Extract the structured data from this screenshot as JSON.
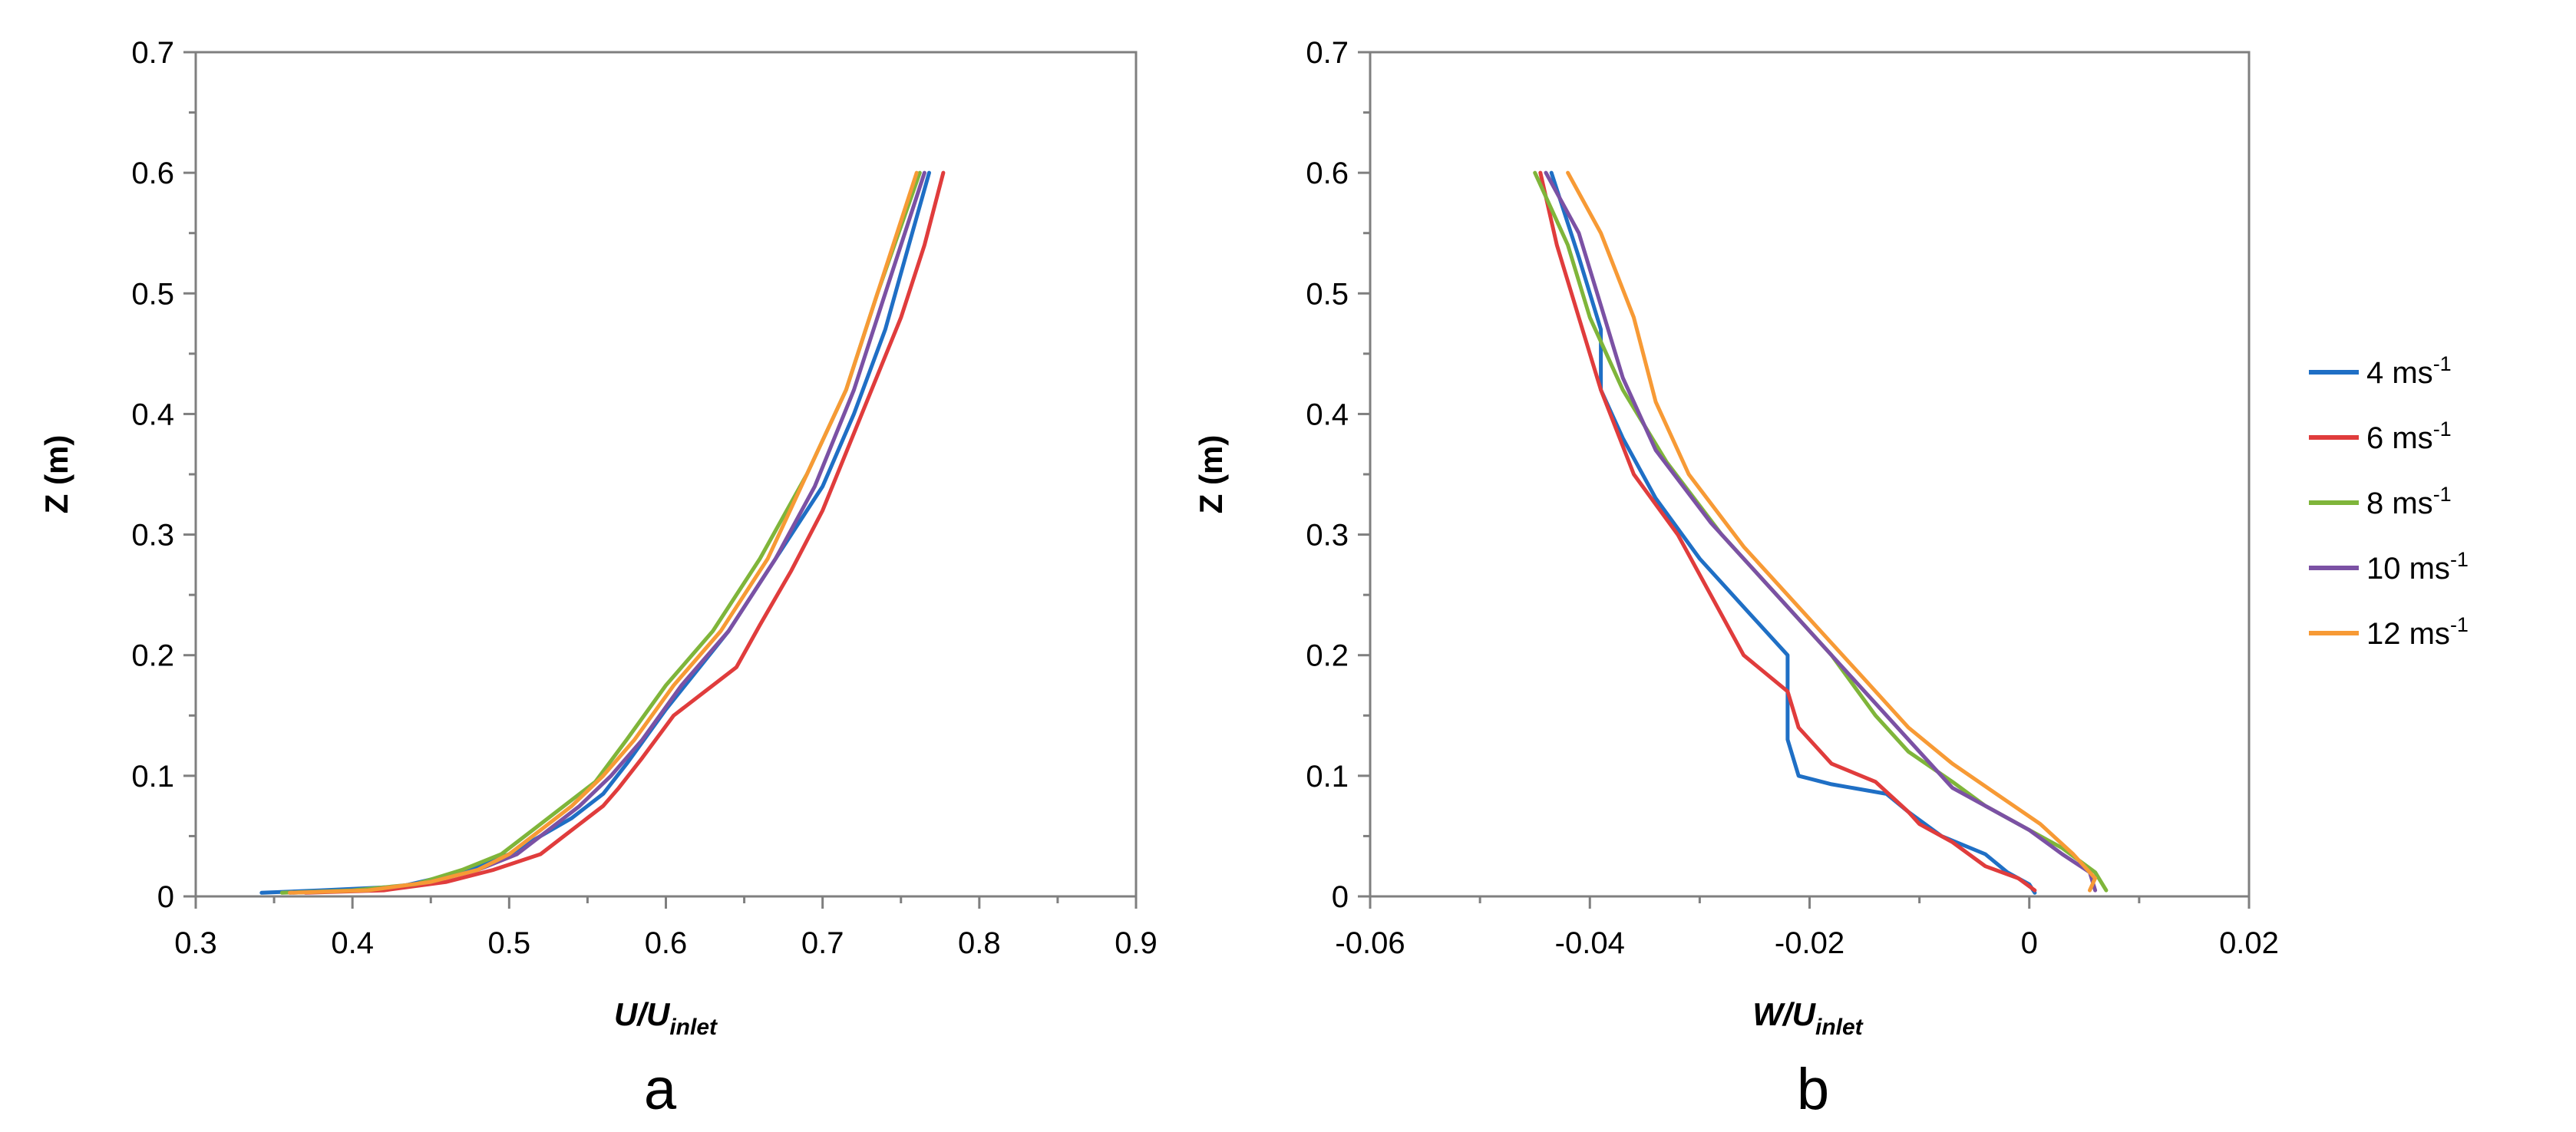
{
  "colors": {
    "4": "#1f6fc5",
    "6": "#e03c3c",
    "8": "#7fb53a",
    "10": "#7b51a4",
    "12": "#f79a35"
  },
  "legend": [
    {
      "key": "4",
      "base": "4 ms",
      "sup": "-1"
    },
    {
      "key": "6",
      "base": "6 ms",
      "sup": "-1"
    },
    {
      "key": "8",
      "base": "8 ms",
      "sup": "-1"
    },
    {
      "key": "10",
      "base": "10 ms",
      "sup": "-1"
    },
    {
      "key": "12",
      "base": "12 ms",
      "sup": "-1"
    }
  ],
  "chart_data": [
    {
      "type": "line",
      "panel_label": "a",
      "xlabel_main": "U/U",
      "xlabel_sub": "inlet",
      "ylabel": "Z (m)",
      "xlim": [
        0.3,
        0.9
      ],
      "ylim": [
        0,
        0.7
      ],
      "xticks": [
        "0.3",
        "0.4",
        "0.5",
        "0.6",
        "0.7",
        "0.8",
        "0.9"
      ],
      "yticks": [
        "0",
        "0.1",
        "0.2",
        "0.3",
        "0.4",
        "0.5",
        "0.6",
        "0.7"
      ],
      "series": [
        {
          "name": "4 ms-1",
          "key": "4",
          "points": [
            [
              0.342,
              0.003
            ],
            [
              0.38,
              0.005
            ],
            [
              0.43,
              0.008
            ],
            [
              0.47,
              0.02
            ],
            [
              0.5,
              0.035
            ],
            [
              0.52,
              0.05
            ],
            [
              0.54,
              0.065
            ],
            [
              0.56,
              0.085
            ],
            [
              0.575,
              0.11
            ],
            [
              0.6,
              0.155
            ],
            [
              0.64,
              0.22
            ],
            [
              0.67,
              0.28
            ],
            [
              0.7,
              0.34
            ],
            [
              0.72,
              0.4
            ],
            [
              0.74,
              0.47
            ],
            [
              0.755,
              0.54
            ],
            [
              0.768,
              0.6
            ]
          ]
        },
        {
          "name": "6 ms-1",
          "key": "6",
          "points": [
            [
              0.37,
              0.003
            ],
            [
              0.42,
              0.005
            ],
            [
              0.46,
              0.012
            ],
            [
              0.49,
              0.022
            ],
            [
              0.52,
              0.035
            ],
            [
              0.535,
              0.05
            ],
            [
              0.545,
              0.06
            ],
            [
              0.56,
              0.075
            ],
            [
              0.57,
              0.09
            ],
            [
              0.585,
              0.115
            ],
            [
              0.605,
              0.15
            ],
            [
              0.625,
              0.17
            ],
            [
              0.645,
              0.19
            ],
            [
              0.66,
              0.225
            ],
            [
              0.68,
              0.27
            ],
            [
              0.7,
              0.32
            ],
            [
              0.725,
              0.4
            ],
            [
              0.75,
              0.48
            ],
            [
              0.765,
              0.54
            ],
            [
              0.777,
              0.6
            ]
          ]
        },
        {
          "name": "8 ms-1",
          "key": "8",
          "points": [
            [
              0.355,
              0.003
            ],
            [
              0.4,
              0.005
            ],
            [
              0.44,
              0.01
            ],
            [
              0.47,
              0.022
            ],
            [
              0.495,
              0.035
            ],
            [
              0.515,
              0.055
            ],
            [
              0.535,
              0.075
            ],
            [
              0.555,
              0.095
            ],
            [
              0.575,
              0.13
            ],
            [
              0.6,
              0.175
            ],
            [
              0.63,
              0.22
            ],
            [
              0.66,
              0.28
            ],
            [
              0.69,
              0.35
            ],
            [
              0.715,
              0.42
            ],
            [
              0.735,
              0.5
            ],
            [
              0.762,
              0.6
            ]
          ]
        },
        {
          "name": "10 ms-1",
          "key": "10",
          "points": [
            [
              0.36,
              0.003
            ],
            [
              0.41,
              0.005
            ],
            [
              0.45,
              0.012
            ],
            [
              0.48,
              0.022
            ],
            [
              0.505,
              0.035
            ],
            [
              0.525,
              0.055
            ],
            [
              0.545,
              0.075
            ],
            [
              0.565,
              0.1
            ],
            [
              0.585,
              0.13
            ],
            [
              0.61,
              0.175
            ],
            [
              0.64,
              0.22
            ],
            [
              0.67,
              0.28
            ],
            [
              0.695,
              0.34
            ],
            [
              0.72,
              0.42
            ],
            [
              0.74,
              0.5
            ],
            [
              0.765,
              0.6
            ]
          ]
        },
        {
          "name": "12 ms-1",
          "key": "12",
          "points": [
            [
              0.36,
              0.003
            ],
            [
              0.41,
              0.005
            ],
            [
              0.45,
              0.012
            ],
            [
              0.48,
              0.022
            ],
            [
              0.5,
              0.035
            ],
            [
              0.52,
              0.055
            ],
            [
              0.54,
              0.075
            ],
            [
              0.56,
              0.1
            ],
            [
              0.58,
              0.13
            ],
            [
              0.605,
              0.175
            ],
            [
              0.635,
              0.22
            ],
            [
              0.665,
              0.28
            ],
            [
              0.69,
              0.35
            ],
            [
              0.715,
              0.42
            ],
            [
              0.735,
              0.5
            ],
            [
              0.76,
              0.6
            ]
          ]
        }
      ]
    },
    {
      "type": "line",
      "panel_label": "b",
      "xlabel_main": "W/U",
      "xlabel_sub": "inlet",
      "ylabel": "Z (m)",
      "xlim": [
        -0.06,
        0.02
      ],
      "ylim": [
        0,
        0.7
      ],
      "xticks": [
        "-0.06",
        "-0.04",
        "-0.02",
        "0",
        "0.02"
      ],
      "yticks": [
        "0",
        "0.1",
        "0.2",
        "0.3",
        "0.4",
        "0.5",
        "0.6",
        "0.7"
      ],
      "series": [
        {
          "name": "4 ms-1",
          "key": "4",
          "points": [
            [
              0.0005,
              0.003
            ],
            [
              0.0,
              0.01
            ],
            [
              -0.002,
              0.02
            ],
            [
              -0.004,
              0.035
            ],
            [
              -0.008,
              0.05
            ],
            [
              -0.011,
              0.07
            ],
            [
              -0.013,
              0.085
            ],
            [
              -0.018,
              0.093
            ],
            [
              -0.021,
              0.1
            ],
            [
              -0.022,
              0.13
            ],
            [
              -0.022,
              0.17
            ],
            [
              -0.022,
              0.2
            ],
            [
              -0.026,
              0.24
            ],
            [
              -0.03,
              0.28
            ],
            [
              -0.034,
              0.33
            ],
            [
              -0.037,
              0.38
            ],
            [
              -0.039,
              0.42
            ],
            [
              -0.039,
              0.47
            ],
            [
              -0.041,
              0.53
            ],
            [
              -0.0435,
              0.6
            ]
          ]
        },
        {
          "name": "6 ms-1",
          "key": "6",
          "points": [
            [
              0.0005,
              0.005
            ],
            [
              -0.001,
              0.015
            ],
            [
              -0.004,
              0.025
            ],
            [
              -0.007,
              0.045
            ],
            [
              -0.01,
              0.06
            ],
            [
              -0.011,
              0.07
            ],
            [
              -0.014,
              0.095
            ],
            [
              -0.018,
              0.11
            ],
            [
              -0.021,
              0.14
            ],
            [
              -0.022,
              0.17
            ],
            [
              -0.026,
              0.2
            ],
            [
              -0.029,
              0.25
            ],
            [
              -0.032,
              0.3
            ],
            [
              -0.036,
              0.35
            ],
            [
              -0.039,
              0.42
            ],
            [
              -0.041,
              0.48
            ],
            [
              -0.043,
              0.54
            ],
            [
              -0.0445,
              0.6
            ]
          ]
        },
        {
          "name": "8 ms-1",
          "key": "8",
          "points": [
            [
              0.007,
              0.005
            ],
            [
              0.006,
              0.02
            ],
            [
              0.003,
              0.04
            ],
            [
              0.0,
              0.055
            ],
            [
              -0.004,
              0.075
            ],
            [
              -0.007,
              0.095
            ],
            [
              -0.011,
              0.12
            ],
            [
              -0.014,
              0.15
            ],
            [
              -0.018,
              0.2
            ],
            [
              -0.023,
              0.25
            ],
            [
              -0.028,
              0.3
            ],
            [
              -0.033,
              0.36
            ],
            [
              -0.037,
              0.42
            ],
            [
              -0.04,
              0.48
            ],
            [
              -0.042,
              0.54
            ],
            [
              -0.045,
              0.6
            ]
          ]
        },
        {
          "name": "10 ms-1",
          "key": "10",
          "points": [
            [
              0.006,
              0.005
            ],
            [
              0.0055,
              0.02
            ],
            [
              0.003,
              0.035
            ],
            [
              0.0,
              0.055
            ],
            [
              -0.004,
              0.075
            ],
            [
              -0.007,
              0.09
            ],
            [
              -0.01,
              0.12
            ],
            [
              -0.014,
              0.16
            ],
            [
              -0.019,
              0.21
            ],
            [
              -0.024,
              0.26
            ],
            [
              -0.029,
              0.31
            ],
            [
              -0.034,
              0.37
            ],
            [
              -0.037,
              0.43
            ],
            [
              -0.039,
              0.49
            ],
            [
              -0.041,
              0.55
            ],
            [
              -0.044,
              0.6
            ]
          ]
        },
        {
          "name": "12 ms-1",
          "key": "12",
          "points": [
            [
              0.0055,
              0.005
            ],
            [
              0.006,
              0.015
            ],
            [
              0.004,
              0.035
            ],
            [
              0.001,
              0.06
            ],
            [
              -0.003,
              0.085
            ],
            [
              -0.007,
              0.11
            ],
            [
              -0.011,
              0.14
            ],
            [
              -0.015,
              0.18
            ],
            [
              -0.02,
              0.23
            ],
            [
              -0.026,
              0.29
            ],
            [
              -0.031,
              0.35
            ],
            [
              -0.034,
              0.41
            ],
            [
              -0.036,
              0.48
            ],
            [
              -0.039,
              0.55
            ],
            [
              -0.042,
              0.6
            ]
          ]
        }
      ]
    }
  ]
}
